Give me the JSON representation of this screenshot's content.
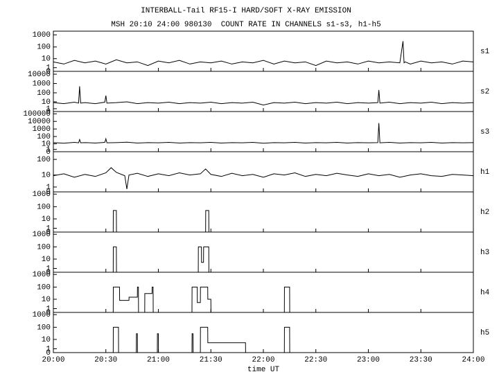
{
  "chart_data": [
    {
      "type": "line",
      "title": "INTERBALL-Tail RF15-I HARD/SOFT X-RAY EMISSION",
      "subtitle": "MSH 20:10 24:00 980130  COUNT RATE IN CHANNELS s1-s3, h1-h5",
      "yscale": "log1p",
      "ylim": [
        0,
        2000
      ],
      "yticks": [
        1000,
        100,
        10,
        1,
        0
      ],
      "x": [
        20,
        20.1,
        20.2,
        20.3,
        20.4,
        20.5,
        20.6,
        20.7,
        20.8,
        20.9,
        21,
        21.1,
        21.2,
        21.3,
        21.4,
        21.5,
        21.6,
        21.7,
        21.8,
        21.9,
        22,
        22.1,
        22.2,
        22.3,
        22.4,
        22.5,
        22.6,
        22.7,
        22.8,
        22.9,
        23,
        23.1,
        23.2,
        23.3,
        23.33,
        23.34,
        23.35,
        23.4,
        23.5,
        23.6,
        23.7,
        23.8,
        23.9,
        24
      ],
      "series": [
        {
          "name": "s1",
          "color": "#000000",
          "values": [
            5,
            3,
            7,
            4,
            6,
            3,
            8,
            4,
            5,
            2,
            6,
            4,
            7,
            3,
            5,
            4,
            6,
            3,
            5,
            4,
            7,
            3,
            6,
            4,
            5,
            2,
            6,
            4,
            5,
            3,
            6,
            4,
            5,
            4,
            300,
            4,
            5,
            3,
            6,
            4,
            5,
            3,
            6,
            5
          ]
        }
      ]
    },
    {
      "type": "line",
      "yscale": "log1p",
      "ylim": [
        0,
        20000
      ],
      "yticks": [
        10000,
        1000,
        100,
        10,
        1,
        0
      ],
      "x": [
        20,
        20.1,
        20.2,
        20.24,
        20.25,
        20.26,
        20.3,
        20.4,
        20.49,
        20.5,
        20.51,
        20.6,
        20.7,
        20.8,
        20.9,
        21,
        21.1,
        21.2,
        21.3,
        21.4,
        21.5,
        21.6,
        21.7,
        21.8,
        21.9,
        22,
        22.1,
        22.2,
        22.3,
        22.4,
        22.5,
        22.6,
        22.7,
        22.8,
        22.9,
        23,
        23.09,
        23.1,
        23.11,
        23.2,
        23.3,
        23.4,
        23.5,
        23.6,
        23.7,
        23.8,
        23.9,
        24
      ],
      "series": [
        {
          "name": "s2",
          "color": "#000000",
          "values": [
            8,
            6,
            9,
            7,
            500,
            7,
            8,
            6,
            9,
            50,
            7,
            8,
            10,
            6,
            8,
            7,
            9,
            6,
            8,
            7,
            9,
            6,
            8,
            7,
            9,
            4,
            8,
            7,
            9,
            6,
            8,
            7,
            9,
            6,
            8,
            7,
            8,
            200,
            7,
            9,
            6,
            8,
            7,
            9,
            6,
            8,
            7,
            8
          ]
        }
      ]
    },
    {
      "type": "line",
      "yscale": "log1p",
      "ylim": [
        0,
        200000
      ],
      "yticks": [
        100000,
        10000,
        1000,
        100,
        10,
        1,
        0
      ],
      "x": [
        20,
        20.1,
        20.2,
        20.24,
        20.25,
        20.26,
        20.3,
        20.4,
        20.49,
        20.5,
        20.51,
        20.6,
        20.7,
        20.8,
        20.9,
        21,
        21.1,
        21.2,
        21.3,
        21.4,
        21.5,
        21.6,
        21.7,
        21.8,
        21.9,
        22,
        22.1,
        22.2,
        22.3,
        22.4,
        22.5,
        22.6,
        22.7,
        22.8,
        22.9,
        23,
        23.09,
        23.1,
        23.11,
        23.2,
        23.3,
        23.4,
        23.5,
        23.6,
        23.7,
        23.8,
        23.9,
        24
      ],
      "series": [
        {
          "name": "s3",
          "color": "#000000",
          "values": [
            15,
            12,
            16,
            14,
            40,
            14,
            15,
            13,
            16,
            50,
            14,
            15,
            17,
            13,
            15,
            14,
            16,
            13,
            15,
            14,
            16,
            13,
            15,
            14,
            16,
            12,
            15,
            14,
            16,
            13,
            15,
            14,
            16,
            13,
            15,
            14,
            15,
            6000,
            14,
            16,
            13,
            15,
            14,
            16,
            13,
            15,
            14,
            15
          ]
        }
      ]
    },
    {
      "type": "line",
      "yscale": "log1p",
      "ylim": [
        0,
        300
      ],
      "yticks": [
        100,
        10,
        1,
        0
      ],
      "x": [
        20,
        20.1,
        20.2,
        20.3,
        20.4,
        20.5,
        20.55,
        20.6,
        20.68,
        20.7,
        20.72,
        20.8,
        20.9,
        21,
        21.1,
        21.2,
        21.3,
        21.4,
        21.45,
        21.5,
        21.6,
        21.7,
        21.8,
        21.9,
        22,
        22.1,
        22.2,
        22.3,
        22.4,
        22.5,
        22.6,
        22.7,
        22.8,
        22.9,
        23,
        23.1,
        23.2,
        23.3,
        23.4,
        23.5,
        23.6,
        23.7,
        23.8,
        23.9,
        24
      ],
      "series": [
        {
          "name": "h1",
          "color": "#000000",
          "values": [
            9,
            12,
            7,
            11,
            8,
            14,
            30,
            15,
            9,
            0.5,
            10,
            13,
            8,
            12,
            9,
            14,
            10,
            12,
            25,
            11,
            8,
            13,
            9,
            11,
            7,
            12,
            10,
            14,
            8,
            11,
            9,
            13,
            10,
            8,
            12,
            9,
            11,
            7,
            10,
            12,
            9,
            8,
            11,
            10,
            9
          ]
        }
      ]
    },
    {
      "type": "line",
      "yscale": "log1p",
      "ylim": [
        0,
        1500
      ],
      "yticks": [
        1000,
        100,
        10,
        1,
        0
      ],
      "x": [
        20,
        20.57,
        20.571,
        20.6,
        20.601,
        21.45,
        21.451,
        21.48,
        21.481,
        24
      ],
      "series": [
        {
          "name": "h2",
          "color": "#000000",
          "values": [
            0,
            0,
            50,
            50,
            0,
            0,
            50,
            50,
            0,
            0
          ]
        }
      ]
    },
    {
      "type": "line",
      "yscale": "log1p",
      "ylim": [
        0,
        1500
      ],
      "yticks": [
        1000,
        100,
        10,
        1,
        0
      ],
      "x": [
        20,
        20.57,
        20.571,
        20.6,
        20.601,
        21.38,
        21.381,
        21.41,
        21.411,
        21.43,
        21.431,
        21.48,
        21.481,
        24
      ],
      "series": [
        {
          "name": "h3",
          "color": "#000000",
          "values": [
            0,
            0,
            100,
            100,
            0,
            0,
            100,
            100,
            5,
            5,
            100,
            100,
            0,
            0
          ]
        }
      ]
    },
    {
      "type": "line",
      "yscale": "log1p",
      "ylim": [
        0,
        1500
      ],
      "yticks": [
        1000,
        100,
        10,
        1,
        0
      ],
      "x": [
        20,
        20.57,
        20.571,
        20.63,
        20.631,
        20.72,
        20.721,
        20.8,
        20.801,
        20.81,
        20.811,
        20.87,
        20.871,
        20.93,
        20.94,
        20.941,
        20.95,
        20.951,
        21.32,
        21.321,
        21.37,
        21.371,
        21.4,
        21.401,
        21.47,
        21.471,
        21.5,
        21.501,
        22.2,
        22.201,
        22.25,
        22.251,
        24
      ],
      "series": [
        {
          "name": "h4",
          "color": "#000000",
          "values": [
            0,
            0,
            100,
            100,
            8,
            8,
            15,
            15,
            100,
            100,
            0,
            0,
            30,
            30,
            30,
            100,
            100,
            0,
            0,
            100,
            100,
            5,
            5,
            100,
            100,
            10,
            10,
            0,
            0,
            100,
            100,
            0,
            0
          ]
        }
      ]
    },
    {
      "type": "line",
      "yscale": "log1p",
      "ylim": [
        0,
        1500
      ],
      "yticks": [
        1000,
        100,
        10,
        1,
        0
      ],
      "xlim": [
        20,
        24
      ],
      "xticks": [
        {
          "value": 20,
          "label": "20:00"
        },
        {
          "value": 20.5,
          "label": "20:30"
        },
        {
          "value": 21,
          "label": "21:00"
        },
        {
          "value": 21.5,
          "label": "21:30"
        },
        {
          "value": 22,
          "label": "22:00"
        },
        {
          "value": 22.5,
          "label": "22:30"
        },
        {
          "value": 23,
          "label": "23:00"
        },
        {
          "value": 23.5,
          "label": "23:30"
        },
        {
          "value": 24,
          "label": "24:00"
        }
      ],
      "xlabel": "time UT",
      "x": [
        20,
        20.57,
        20.571,
        20.62,
        20.621,
        20.79,
        20.791,
        20.8,
        20.801,
        20.99,
        20.991,
        21.0,
        21.001,
        21.32,
        21.321,
        21.33,
        21.331,
        21.4,
        21.401,
        21.47,
        21.471,
        21.83,
        21.831,
        22.2,
        22.201,
        22.25,
        22.251,
        24
      ],
      "series": [
        {
          "name": "h5",
          "color": "#000000",
          "values": [
            0,
            0,
            100,
            100,
            0,
            0,
            30,
            30,
            0,
            0,
            30,
            30,
            0,
            0,
            30,
            30,
            0,
            0,
            100,
            100,
            5,
            5,
            0,
            0,
            100,
            100,
            0,
            0
          ]
        }
      ]
    }
  ]
}
